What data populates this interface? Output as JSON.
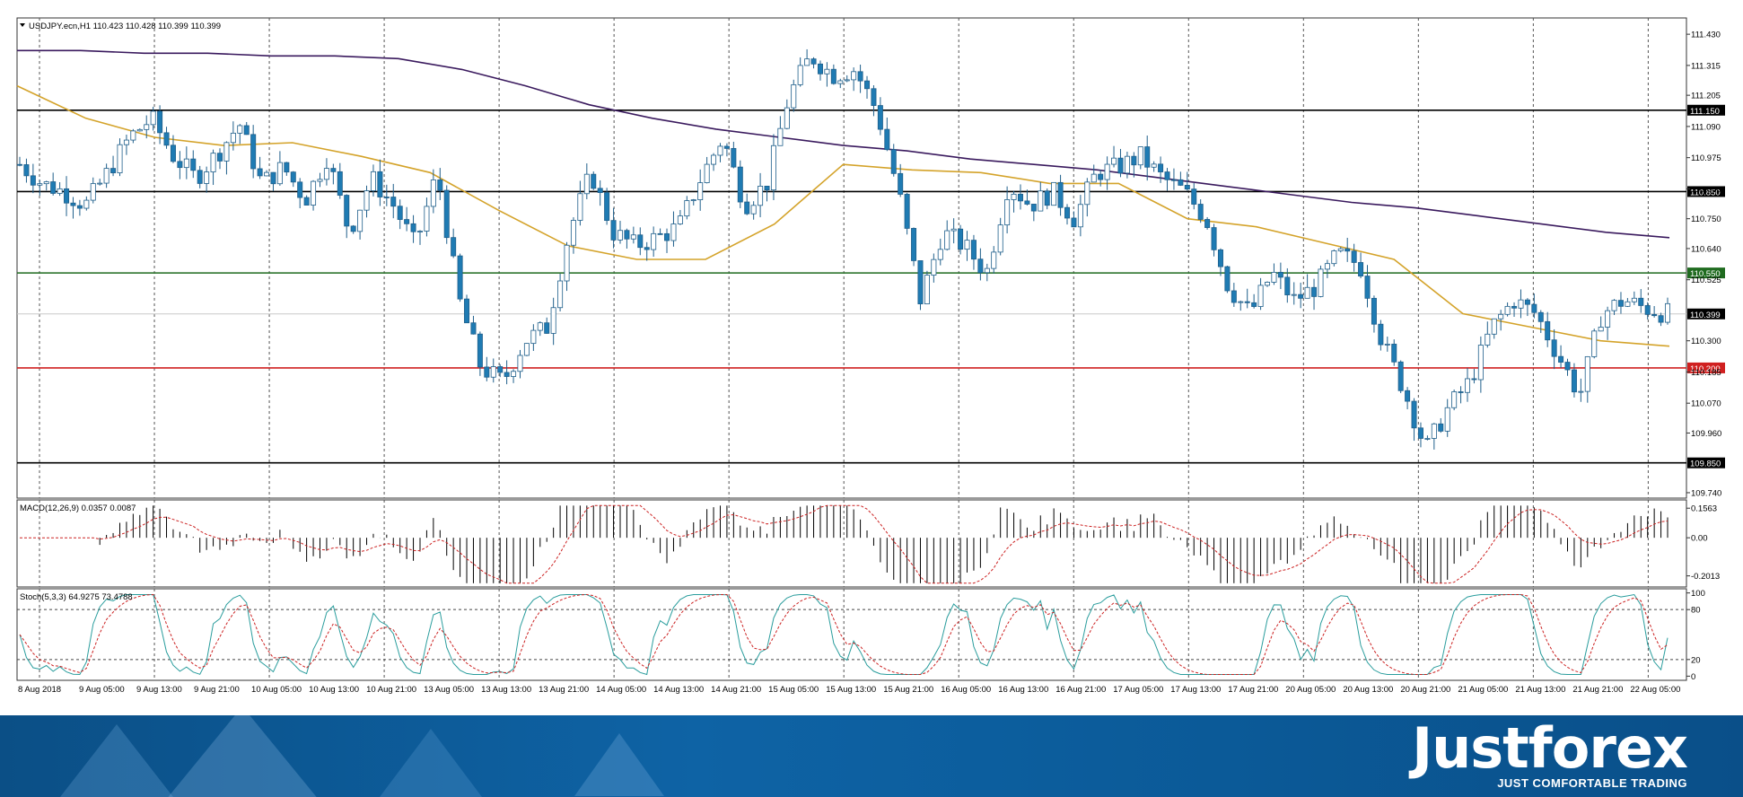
{
  "chart_data": {
    "type": "candlestick",
    "title": "USDJPY.ecn,H1  110.423 110.428 110.399 110.399",
    "ylim": [
      109.72,
      111.49
    ],
    "price_ticks": [
      "111.430",
      "111.315",
      "111.205",
      "111.090",
      "110.975",
      "110.860",
      "110.750",
      "110.640",
      "110.525",
      "110.300",
      "110.185",
      "110.070",
      "109.960",
      "109.740"
    ],
    "price_tick_values": [
      111.43,
      111.315,
      111.205,
      111.09,
      110.975,
      110.86,
      110.75,
      110.64,
      110.525,
      110.3,
      110.185,
      110.07,
      109.96,
      109.74
    ],
    "horizontal_levels": [
      {
        "value": 111.15,
        "label": "111.150",
        "color": "#000000"
      },
      {
        "value": 110.85,
        "label": "110.850",
        "color": "#000000"
      },
      {
        "value": 110.55,
        "label": "110.550",
        "color": "#1f6b1f"
      },
      {
        "value": 110.2,
        "label": "110.200",
        "color": "#d02020"
      },
      {
        "value": 109.85,
        "label": "109.850",
        "color": "#000000"
      }
    ],
    "current_price": {
      "value": 110.399,
      "label": "110.399"
    },
    "x_labels": [
      "8 Aug 2018",
      "9 Aug 05:00",
      "9 Aug 13:00",
      "9 Aug 21:00",
      "10 Aug 05:00",
      "10 Aug 13:00",
      "10 Aug 21:00",
      "13 Aug 05:00",
      "13 Aug 13:00",
      "13 Aug 21:00",
      "14 Aug 05:00",
      "14 Aug 13:00",
      "14 Aug 21:00",
      "15 Aug 05:00",
      "15 Aug 13:00",
      "15 Aug 21:00",
      "16 Aug 05:00",
      "16 Aug 13:00",
      "16 Aug 21:00",
      "17 Aug 05:00",
      "17 Aug 13:00",
      "17 Aug 21:00",
      "20 Aug 05:00",
      "20 Aug 13:00",
      "20 Aug 21:00",
      "21 Aug 05:00",
      "21 Aug 13:00",
      "21 Aug 21:00",
      "22 Aug 05:00"
    ],
    "close_path": [
      110.95,
      110.88,
      110.85,
      110.8,
      110.92,
      111.05,
      111.12,
      110.98,
      110.9,
      110.99,
      111.1,
      110.88,
      110.94,
      110.82,
      110.98,
      110.7,
      110.9,
      110.8,
      110.65,
      110.92,
      110.45,
      110.2,
      110.15,
      110.3,
      110.35,
      110.7,
      110.92,
      110.7,
      110.65,
      110.68,
      110.72,
      110.9,
      111.05,
      110.8,
      110.88,
      111.2,
      111.35,
      111.28,
      111.3,
      111.15,
      110.85,
      110.45,
      110.7,
      110.65,
      110.55,
      110.88,
      110.8,
      110.85,
      110.75,
      110.92,
      110.94,
      110.98,
      110.9,
      110.85,
      110.75,
      110.5,
      110.4,
      110.55,
      110.45,
      110.5,
      110.62,
      110.58,
      110.3,
      110.12,
      109.9,
      110.05,
      110.15,
      110.35,
      110.45,
      110.4,
      110.25,
      110.1,
      110.4,
      110.45,
      110.42,
      110.4
    ],
    "ma_slow": [
      111.37,
      111.37,
      111.36,
      111.36,
      111.35,
      111.35,
      111.34,
      111.3,
      111.24,
      111.17,
      111.12,
      111.08,
      111.05,
      111.02,
      111.0,
      110.97,
      110.95,
      110.93,
      110.9,
      110.87,
      110.84,
      110.81,
      110.79,
      110.76,
      110.73,
      110.7,
      110.68
    ],
    "ma_mid": [
      111.24,
      111.12,
      111.05,
      111.02,
      111.03,
      110.98,
      110.92,
      110.78,
      110.65,
      110.6,
      110.6,
      110.73,
      110.95,
      110.93,
      110.92,
      110.88,
      110.88,
      110.75,
      110.72,
      110.66,
      110.6,
      110.4,
      110.35,
      110.3,
      110.28
    ],
    "macd": {
      "label": "MACD(12,26,9) 0.0357 0.0087",
      "ticks": [
        "0.1563",
        "0.00",
        "-0.2013"
      ],
      "tick_values": [
        0.1563,
        0.0,
        -0.2013
      ],
      "ylim": [
        -0.26,
        0.2
      ]
    },
    "stoch": {
      "label": "Stoch(5,3,3) 64.9275 73.4788",
      "ticks": [
        "100",
        "80",
        "20",
        "0"
      ],
      "tick_values": [
        100,
        80,
        20,
        0
      ],
      "ylim": [
        -5,
        105
      ]
    },
    "colors": {
      "bull": "#ffffff",
      "bear": "#1f7bb3",
      "ma_slow": "#3a1a5e",
      "ma_mid": "#d4a32a",
      "stoch_main": "#2a9d9d",
      "stoch_signal": "#cc2222",
      "macd_signal": "#cc2222"
    }
  },
  "branding": {
    "logo": "Justforex",
    "tagline": "JUST COMFORTABLE TRADING"
  }
}
